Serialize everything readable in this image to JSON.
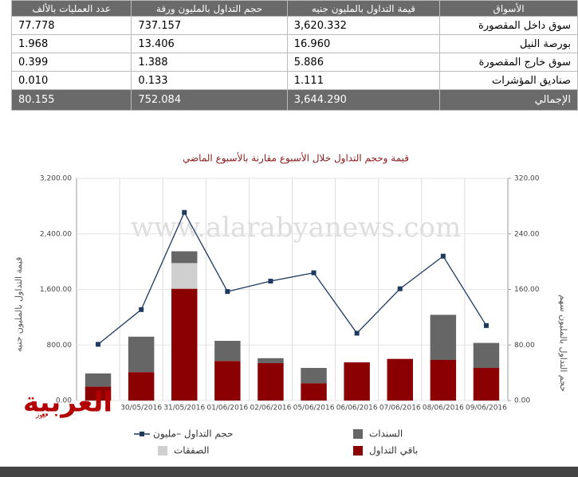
{
  "table": {
    "header": [
      "الأسواق",
      "قيمة التداول بالمليون جنيه",
      "حجم التداول بالمليون ورقة",
      "عدد العمليات بالألف"
    ],
    "rows": [
      [
        "سوق داخل المقصورة",
        "3,620.332",
        "737.157",
        "77.778"
      ],
      [
        "بورصة النيل",
        "16.960",
        "13.406",
        "1.968"
      ],
      [
        "سوق خارج المقصورة",
        "5.886",
        "1.388",
        "0.399"
      ],
      [
        "صناديق المؤشرات",
        "1.111",
        "0.133",
        "0.010"
      ]
    ],
    "total": [
      "الإجمالي",
      "3,644.290",
      "752.084",
      "80.155"
    ]
  },
  "chart_data": {
    "type": "bar",
    "title": "قيمة وحجم التداول خلال الأسبوع مقارنة بالأسبوع الماضي",
    "y_label": "قيمة التداول بالمليون جنيه",
    "y2_label": "حجم التداول بالمليون سهم",
    "categories": [
      null,
      "30/05/2016",
      "31/05/2016",
      "01/06/2016",
      "02/06/2016",
      "05/06/2016",
      "06/06/2016",
      "07/06/2016",
      "08/06/2016",
      "09/06/2016"
    ],
    "ylim": [
      0,
      3200
    ],
    "yticks": [
      {
        "value": 0,
        "label": "0.00"
      },
      {
        "value": 800,
        "label": "800.00"
      },
      {
        "value": 1600,
        "label": "1,600.00"
      },
      {
        "value": 2400,
        "label": "2,400.00"
      },
      {
        "value": 3200,
        "label": "3,200.00"
      }
    ],
    "y2lim": [
      0,
      320
    ],
    "y2ticks": [
      {
        "value": 0,
        "label": "0.00"
      },
      {
        "value": 80,
        "label": "80.00"
      },
      {
        "value": 160,
        "label": "160.00"
      },
      {
        "value": 240,
        "label": "240.00"
      },
      {
        "value": 320,
        "label": "320.00"
      }
    ],
    "grid": true,
    "stacked": true,
    "series": [
      {
        "name": "باقي التداول",
        "type": "bar",
        "color": "#8b0000",
        "values": [
          200,
          410,
          1610,
          570,
          540,
          250,
          550,
          600,
          585,
          470
        ]
      },
      {
        "name": "الصفقات",
        "type": "bar",
        "color": "#cfcfcf",
        "values": [
          0,
          0,
          370,
          0,
          0,
          0,
          0,
          0,
          0,
          0
        ]
      },
      {
        "name": "السندات",
        "type": "bar",
        "color": "#666666",
        "values": [
          190,
          510,
          170,
          290,
          70,
          220,
          0,
          0,
          650,
          360
        ]
      },
      {
        "name": "حجم التداول –مليون",
        "type": "line",
        "axis": "y2",
        "color": "#1f3a5f",
        "values": [
          81,
          131,
          271,
          157,
          172,
          184,
          97,
          161,
          208,
          108
        ]
      }
    ]
  },
  "watermark": "www.alarabyanews.com",
  "logo": {
    "name": "العربية",
    "sub": "نيوز"
  }
}
